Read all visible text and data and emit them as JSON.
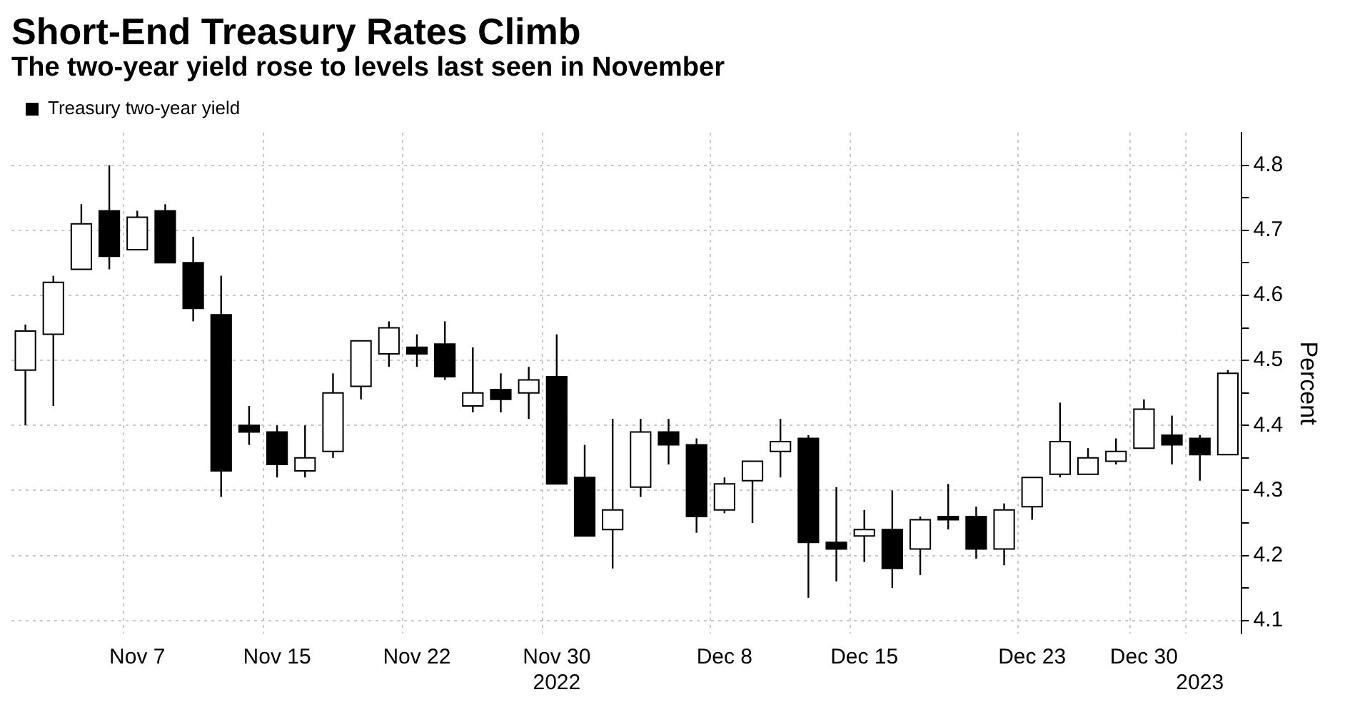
{
  "chart_data": {
    "type": "candlestick",
    "title": "Short-End Treasury Rates Climb",
    "subtitle": "The two-year yield rose to levels last seen in November",
    "ylabel": "Percent",
    "categories": [
      null,
      null,
      null,
      null,
      "Nov 7",
      null,
      null,
      null,
      null,
      "Nov 15",
      null,
      null,
      null,
      null,
      "Nov 22",
      null,
      null,
      null,
      null,
      "Nov 30\n2022",
      null,
      null,
      null,
      null,
      null,
      "Dec 8",
      null,
      null,
      null,
      null,
      "Dec 15",
      null,
      null,
      null,
      null,
      null,
      "Dec 23",
      null,
      null,
      null,
      "Dec 30",
      null,
      "\n2023",
      null
    ],
    "series": [
      {
        "name": "Treasury two-year yield",
        "color": "#000000",
        "colors": [
          "#ffffff",
          "#ffffff",
          "#ffffff",
          "#000000",
          "#ffffff",
          "#000000",
          "#000000",
          "#000000",
          "#000000",
          "#000000",
          "#ffffff",
          "#ffffff",
          "#ffffff",
          "#ffffff",
          "#000000",
          "#000000",
          "#ffffff",
          "#000000",
          "#ffffff",
          "#000000",
          "#000000",
          "#ffffff",
          "#ffffff",
          "#000000",
          "#000000",
          "#ffffff",
          "#ffffff",
          "#ffffff",
          "#000000",
          "#000000",
          "#ffffff",
          "#000000",
          "#ffffff",
          "#000000",
          "#000000",
          "#ffffff",
          "#ffffff",
          "#ffffff",
          "#ffffff",
          "#ffffff",
          "#ffffff",
          "#000000",
          "#000000",
          "#ffffff"
        ],
        "ohlc": [
          [
            4.485,
            4.555,
            4.4,
            4.545
          ],
          [
            4.54,
            4.63,
            4.43,
            4.62
          ],
          [
            4.64,
            4.74,
            4.64,
            4.71
          ],
          [
            4.73,
            4.8,
            4.64,
            4.66
          ],
          [
            4.67,
            4.73,
            4.67,
            4.72
          ],
          [
            4.73,
            4.74,
            4.65,
            4.65
          ],
          [
            4.65,
            4.69,
            4.56,
            4.58
          ],
          [
            4.57,
            4.63,
            4.29,
            4.33
          ],
          [
            4.4,
            4.43,
            4.37,
            4.39
          ],
          [
            4.39,
            4.4,
            4.32,
            4.34
          ],
          [
            4.33,
            4.4,
            4.32,
            4.35
          ],
          [
            4.36,
            4.48,
            4.35,
            4.45
          ],
          [
            4.46,
            4.53,
            4.44,
            4.53
          ],
          [
            4.51,
            4.56,
            4.49,
            4.55
          ],
          [
            4.52,
            4.54,
            4.49,
            4.51
          ],
          [
            4.525,
            4.56,
            4.47,
            4.475
          ],
          [
            4.43,
            4.52,
            4.42,
            4.45
          ],
          [
            4.455,
            4.48,
            4.42,
            4.44
          ],
          [
            4.45,
            4.49,
            4.41,
            4.47
          ],
          [
            4.475,
            4.54,
            4.31,
            4.31
          ],
          [
            4.32,
            4.37,
            4.23,
            4.23
          ],
          [
            4.24,
            4.41,
            4.18,
            4.27
          ],
          [
            4.305,
            4.41,
            4.29,
            4.39
          ],
          [
            4.39,
            4.41,
            4.34,
            4.37
          ],
          [
            4.37,
            4.38,
            4.235,
            4.26
          ],
          [
            4.27,
            4.32,
            4.265,
            4.31
          ],
          [
            4.315,
            4.345,
            4.25,
            4.345
          ],
          [
            4.36,
            4.41,
            4.32,
            4.375
          ],
          [
            4.38,
            4.385,
            4.135,
            4.22
          ],
          [
            4.22,
            4.305,
            4.16,
            4.21
          ],
          [
            4.23,
            4.27,
            4.19,
            4.24
          ],
          [
            4.24,
            4.3,
            4.15,
            4.18
          ],
          [
            4.21,
            4.26,
            4.17,
            4.255
          ],
          [
            4.26,
            4.31,
            4.24,
            4.255
          ],
          [
            4.26,
            4.275,
            4.195,
            4.21
          ],
          [
            4.21,
            4.28,
            4.185,
            4.27
          ],
          [
            4.275,
            4.32,
            4.255,
            4.32
          ],
          [
            4.325,
            4.435,
            4.32,
            4.375
          ],
          [
            4.325,
            4.365,
            4.325,
            4.35
          ],
          [
            4.345,
            4.38,
            4.34,
            4.36
          ],
          [
            4.365,
            4.44,
            4.365,
            4.425
          ],
          [
            4.385,
            4.415,
            4.34,
            4.37
          ],
          [
            4.38,
            4.385,
            4.315,
            4.355
          ],
          [
            4.355,
            4.485,
            4.355,
            4.48
          ]
        ]
      }
    ],
    "ylim": [
      4.08,
      4.85
    ],
    "yticks": [
      4.1,
      {
        "value": 4.15,
        "label": null
      },
      4.2,
      {
        "value": 4.25,
        "label": null
      },
      4.3,
      {
        "value": 4.35,
        "label": null
      },
      4.4,
      {
        "value": 4.45,
        "label": null
      },
      4.5,
      {
        "value": 4.55,
        "label": null
      },
      4.6,
      {
        "value": 4.65,
        "label": null
      },
      4.7,
      {
        "value": 4.75,
        "label": null
      },
      4.8
    ],
    "grid": true,
    "legend": "top left"
  }
}
